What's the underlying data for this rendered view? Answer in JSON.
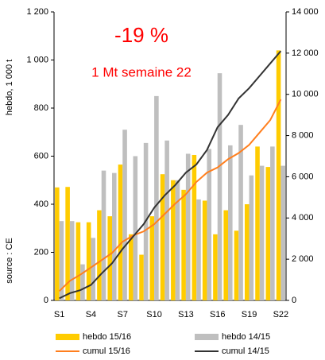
{
  "chart_data": {
    "type": "bar_line",
    "annotations": [
      "-19 %",
      "1 Mt semaine 22"
    ],
    "ylabel": "hebdo, 1 000 t",
    "source": "source : CE",
    "categories": [
      "S1",
      null,
      null,
      "S4",
      null,
      null,
      "S7",
      null,
      null,
      "S10",
      null,
      null,
      "S13",
      null,
      null,
      "S16",
      null,
      null,
      "S19",
      null,
      null,
      "S22"
    ],
    "series": [
      {
        "name": "hebdo 15/16",
        "color": "#ffcc00",
        "kind": "bar",
        "values": [
          470,
          472,
          325,
          325,
          375,
          350,
          565,
          275,
          190,
          350,
          525,
          500,
          460,
          605,
          415,
          275,
          375,
          290,
          400,
          640,
          555,
          1040
        ]
      },
      {
        "name": "hebdo 14/15",
        "color": "#bfbfbf",
        "kind": "bar",
        "values": [
          330,
          330,
          150,
          260,
          540,
          530,
          710,
          600,
          655,
          850,
          665,
          500,
          610,
          420,
          630,
          945,
          645,
          730,
          520,
          560,
          640,
          560
        ]
      },
      {
        "name": "cumul 15/16",
        "color": "#ff7f1e",
        "kind": "line",
        "axis": "y2",
        "values": [
          450,
          950,
          1250,
          1600,
          1950,
          2300,
          2850,
          3150,
          3350,
          3700,
          4200,
          4700,
          5150,
          5750,
          6200,
          6450,
          6850,
          7150,
          7550,
          8150,
          8750,
          9750
        ]
      },
      {
        "name": "cumul 14/15",
        "color": "#333333",
        "kind": "line",
        "axis": "y2",
        "values": [
          100,
          350,
          500,
          750,
          1300,
          1800,
          2500,
          3100,
          3700,
          4500,
          5100,
          5600,
          6200,
          6600,
          7300,
          8400,
          9000,
          9800,
          10300,
          10900,
          11500,
          12100
        ]
      }
    ],
    "ylim": [
      0,
      1200
    ],
    "yticks": [
      0,
      200,
      400,
      600,
      800,
      {
        "value": 1000,
        "label": "1 000"
      },
      {
        "value": 1200,
        "label": "1 200"
      }
    ],
    "y2lim": [
      0,
      14000
    ],
    "y2ticks": [
      0,
      {
        "value": 2000,
        "label": "2 000"
      },
      {
        "value": 4000,
        "label": "4 000"
      },
      {
        "value": 6000,
        "label": "6 000"
      },
      {
        "value": 8000,
        "label": "8 000"
      },
      {
        "value": 10000,
        "label": "10 000"
      },
      {
        "value": 12000,
        "label": "12 000"
      },
      {
        "value": 14000,
        "label": "14 000"
      }
    ],
    "legend": "bottom"
  }
}
